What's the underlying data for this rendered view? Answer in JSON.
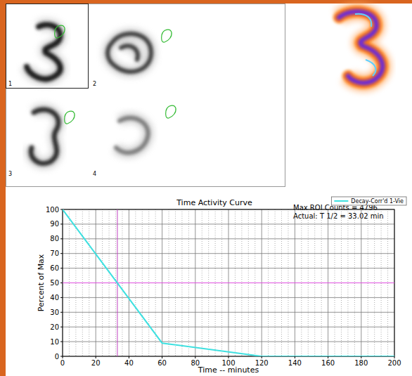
{
  "chart_data": {
    "type": "line",
    "title": "Time Activity Curve",
    "x_label": "Time -- minutes",
    "y_label": "Percent of Max",
    "x": [
      0,
      60,
      120,
      200
    ],
    "series": [
      {
        "name": "Decay-Corr'd 1-Vie",
        "color": "#3fe0e0",
        "values": [
          100,
          9,
          0,
          0
        ]
      }
    ],
    "xlim": [
      0,
      200
    ],
    "xticks": [
      0,
      20,
      40,
      60,
      80,
      100,
      120,
      140,
      160,
      180,
      200
    ],
    "ylim": [
      0,
      100
    ],
    "yticks": [
      0,
      10,
      20,
      30,
      40,
      50,
      60,
      70,
      80,
      90,
      100
    ],
    "grid": true,
    "legend": "top-right",
    "reference_lines": [
      {
        "axis": "y",
        "value": 50,
        "color": "#e050e0"
      },
      {
        "axis": "x",
        "value": 33.02,
        "color": "#c040c0"
      }
    ]
  },
  "annotations": [
    "Max ROI Counts = 4796",
    "Actual: T 1/2 = 33.02 min"
  ],
  "images": {
    "panel_labels": [
      "1",
      "2",
      "3",
      "4"
    ]
  }
}
